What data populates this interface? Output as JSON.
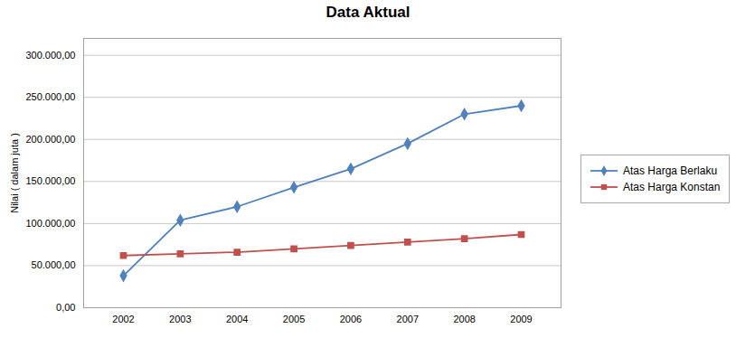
{
  "chart_data": {
    "type": "line",
    "title": "Data Aktual",
    "ylabel": "Nilai ( dalam juta )",
    "x": [
      2002,
      2003,
      2004,
      2005,
      2006,
      2007,
      2008,
      2009
    ],
    "series": [
      {
        "name": "Atas Harga Berlaku",
        "color": "#4F81BD",
        "marker": "diamond",
        "values": [
          38000,
          104000,
          120000,
          143000,
          165000,
          195000,
          230000,
          240000
        ]
      },
      {
        "name": "Atas Harga Konstan",
        "color": "#C0504D",
        "marker": "square",
        "values": [
          62000,
          64000,
          66000,
          70000,
          74000,
          78000,
          82000,
          87000
        ]
      }
    ],
    "xlim": [
      2001.3,
      2009.7
    ],
    "xticks": [
      2002,
      2003,
      2004,
      2005,
      2006,
      2007,
      2008,
      2009
    ],
    "ylim": [
      0,
      320000
    ],
    "yticks": [
      {
        "value": 0,
        "label": "0,00"
      },
      {
        "value": 50000,
        "label": "50.000,00"
      },
      {
        "value": 100000,
        "label": "100.000,00"
      },
      {
        "value": 150000,
        "label": "150.000,00"
      },
      {
        "value": 200000,
        "label": "200.000,00"
      },
      {
        "value": 250000,
        "label": "250.000,00"
      },
      {
        "value": 300000,
        "label": "300.000,00"
      }
    ],
    "grid": true,
    "legend": "right"
  }
}
